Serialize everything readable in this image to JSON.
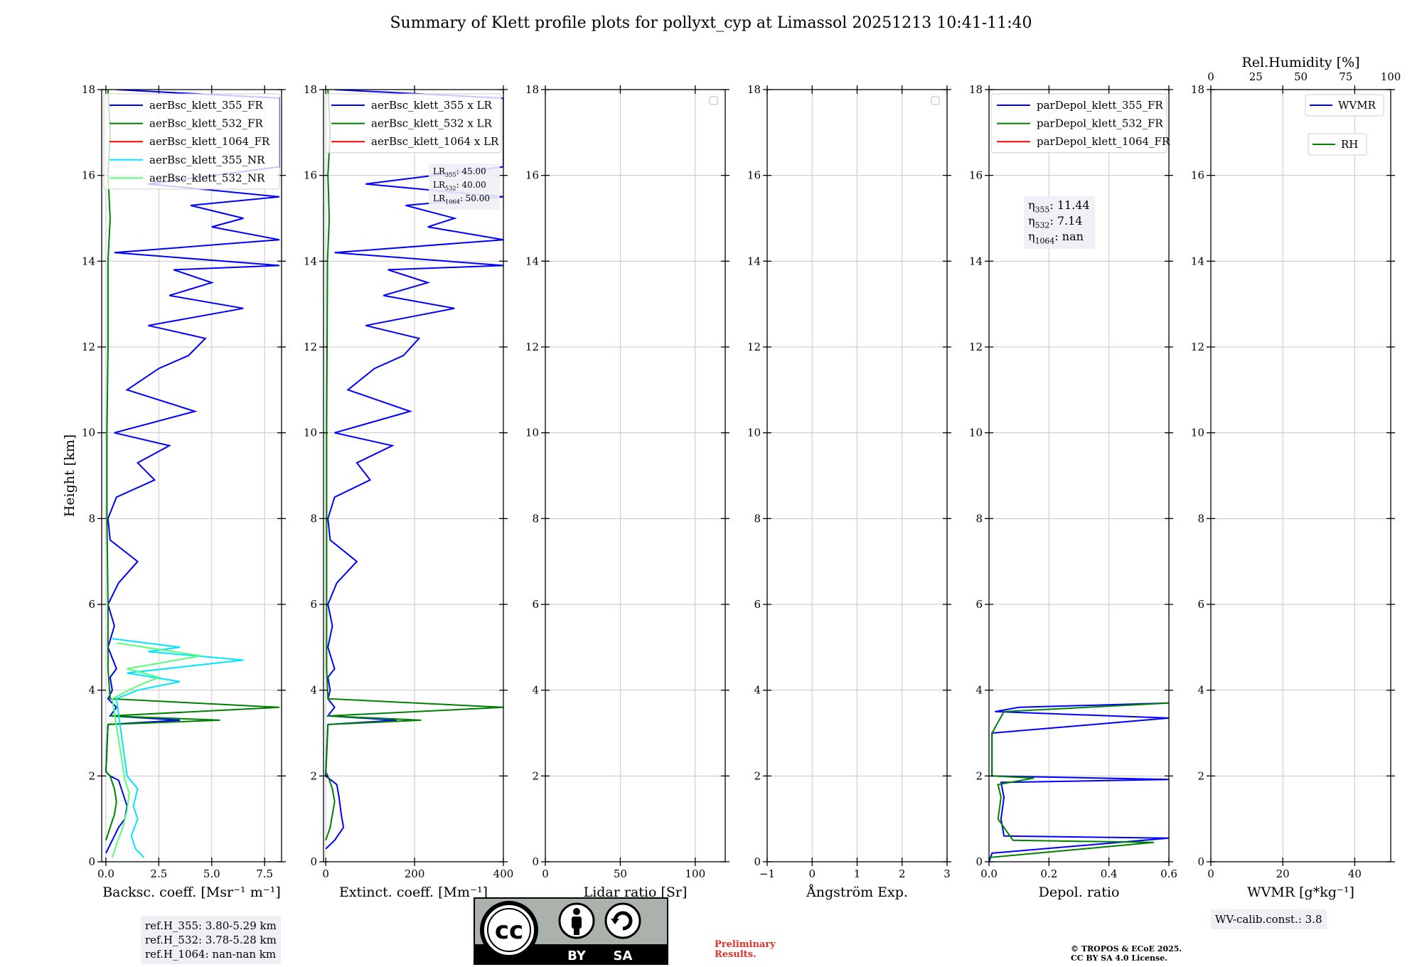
{
  "figure": {
    "title": "Summary of Klett profile plots for pollyxt_cyp at Limassol 20251213 10:41-11:40",
    "y_label": "Height [km]"
  },
  "colors": {
    "blue": "#0000ff",
    "green": "#008000",
    "red": "#ff0000",
    "cyan": "#00e5ff",
    "lightgreen": "#55ff77",
    "grid": "#c8c8c8",
    "box": "#eef0f6"
  },
  "chart_data": [
    {
      "id": "bsc",
      "type": "line",
      "xlabel": "Backsc. coeff. [Msr⁻¹ m⁻¹]",
      "ylabel": "Height [km]",
      "xlim": [
        -0.2,
        8.3
      ],
      "ylim": [
        0,
        18
      ],
      "xticks": [
        0,
        2.5,
        5,
        7.5
      ],
      "xtick_labels": [
        "0.0",
        "2.5",
        "5.0",
        "7.5"
      ],
      "yticks": [
        0,
        2,
        4,
        6,
        8,
        10,
        12,
        14,
        16,
        18
      ],
      "grid": true,
      "legend": [
        {
          "label": "aerBsc_klett_355_FR",
          "color": "#0000ff"
        },
        {
          "label": "aerBsc_klett_532_FR",
          "color": "#008000"
        },
        {
          "label": "aerBsc_klett_1064_FR",
          "color": "#ff0000"
        },
        {
          "label": "aerBsc_klett_355_NR",
          "color": "#00e5ff"
        },
        {
          "label": "aerBsc_klett_532_NR",
          "color": "#55ff77"
        }
      ],
      "legend_position": "top",
      "series": [
        {
          "name": "aerBsc_klett_355_FR",
          "color": "#0000ff",
          "points": [
            [
              0,
              0.2
            ],
            [
              0.3,
              0.5
            ],
            [
              0.6,
              0.8
            ],
            [
              0.9,
              1.0
            ],
            [
              1.0,
              1.3
            ],
            [
              0.8,
              1.6
            ],
            [
              0.6,
              1.9
            ],
            [
              0.2,
              2.0
            ],
            [
              0.0,
              2.1
            ],
            [
              0.1,
              3.2
            ],
            [
              3.5,
              3.3
            ],
            [
              0.2,
              3.4
            ],
            [
              0.5,
              3.6
            ],
            [
              0.1,
              3.8
            ],
            [
              0.3,
              4.0
            ],
            [
              0.2,
              4.3
            ],
            [
              0.5,
              4.5
            ],
            [
              0.1,
              5.0
            ],
            [
              0.4,
              5.5
            ],
            [
              0.1,
              6.0
            ],
            [
              0.6,
              6.5
            ],
            [
              1.5,
              7.0
            ],
            [
              0.2,
              7.5
            ],
            [
              0.1,
              8.0
            ],
            [
              0.5,
              8.5
            ],
            [
              2.3,
              8.9
            ],
            [
              1.5,
              9.3
            ],
            [
              3.0,
              9.7
            ],
            [
              0.4,
              10.0
            ],
            [
              4.2,
              10.5
            ],
            [
              1.0,
              11.0
            ],
            [
              2.5,
              11.5
            ],
            [
              3.9,
              11.8
            ],
            [
              4.7,
              12.2
            ],
            [
              2.0,
              12.5
            ],
            [
              6.5,
              12.9
            ],
            [
              3.0,
              13.2
            ],
            [
              5.0,
              13.5
            ],
            [
              3.2,
              13.8
            ],
            [
              8.2,
              13.9
            ],
            [
              0.4,
              14.2
            ],
            [
              8.2,
              14.5
            ],
            [
              5.0,
              14.8
            ],
            [
              6.5,
              15.0
            ],
            [
              4.0,
              15.3
            ],
            [
              8.2,
              15.5
            ],
            [
              2.0,
              15.8
            ],
            [
              8.2,
              16.2
            ],
            [
              8.2,
              16.8
            ],
            [
              8.2,
              17.3
            ],
            [
              8.2,
              17.8
            ],
            [
              0.5,
              18.0
            ]
          ]
        },
        {
          "name": "aerBsc_klett_532_FR",
          "color": "#008000",
          "points": [
            [
              0,
              0.5
            ],
            [
              0.2,
              0.8
            ],
            [
              0.4,
              1.1
            ],
            [
              0.5,
              1.4
            ],
            [
              0.4,
              1.7
            ],
            [
              0.2,
              2.0
            ],
            [
              0.0,
              2.1
            ],
            [
              0.1,
              3.2
            ],
            [
              5.4,
              3.3
            ],
            [
              0.2,
              3.4
            ],
            [
              8.2,
              3.6
            ],
            [
              0.2,
              3.8
            ],
            [
              0.1,
              4.5
            ],
            [
              0.1,
              6.0
            ],
            [
              0.05,
              8.0
            ],
            [
              0.05,
              10.0
            ],
            [
              0.1,
              12.0
            ],
            [
              0.1,
              14.0
            ],
            [
              0.2,
              15.0
            ],
            [
              0.1,
              16.0
            ],
            [
              0.2,
              17.0
            ],
            [
              0.1,
              18.0
            ]
          ]
        },
        {
          "name": "aerBsc_klett_355_NR",
          "color": "#00e5ff",
          "points": [
            [
              1.8,
              0.1
            ],
            [
              1.4,
              0.3
            ],
            [
              1.2,
              0.6
            ],
            [
              1.5,
              1.0
            ],
            [
              1.3,
              1.3
            ],
            [
              1.5,
              1.7
            ],
            [
              1.0,
              2.0
            ],
            [
              0.5,
              3.8
            ],
            [
              1.5,
              4.0
            ],
            [
              3.5,
              4.2
            ],
            [
              1.0,
              4.4
            ],
            [
              6.5,
              4.7
            ],
            [
              2.0,
              4.9
            ],
            [
              3.5,
              5.0
            ],
            [
              0.3,
              5.2
            ]
          ]
        },
        {
          "name": "aerBsc_klett_532_NR",
          "color": "#55ff77",
          "points": [
            [
              0.3,
              0.1
            ],
            [
              0.5,
              0.4
            ],
            [
              0.8,
              0.8
            ],
            [
              1.0,
              1.2
            ],
            [
              1.1,
              1.6
            ],
            [
              0.9,
              1.9
            ],
            [
              0.3,
              3.8
            ],
            [
              1.5,
              4.1
            ],
            [
              2.5,
              4.3
            ],
            [
              1.0,
              4.5
            ],
            [
              4.5,
              4.8
            ],
            [
              0.5,
              5.1
            ]
          ]
        }
      ]
    },
    {
      "id": "ext",
      "type": "line",
      "xlabel": "Extinct. coeff. [Mm⁻¹]",
      "xlim": [
        -5,
        400
      ],
      "ylim": [
        0,
        18
      ],
      "xticks": [
        0,
        200,
        400
      ],
      "xtick_labels": [
        "0",
        "200",
        "400"
      ],
      "yticks": [
        0,
        2,
        4,
        6,
        8,
        10,
        12,
        14,
        16,
        18
      ],
      "grid": true,
      "legend": [
        {
          "label": "aerBsc_klett_355 x LR",
          "color": "#0000ff"
        },
        {
          "label": "aerBsc_klett_532 x LR",
          "color": "#008000"
        },
        {
          "label": "aerBsc_klett_1064 x LR",
          "color": "#ff0000"
        }
      ],
      "legend_position": "top",
      "annotation_lines": [
        "LR355: 45.00",
        "LR532: 40.00",
        "LR1064: 50.00"
      ],
      "series": [
        {
          "name": "aerBsc_klett_355 x LR",
          "color": "#0000ff",
          "points": [
            [
              0,
              0.3
            ],
            [
              20,
              0.5
            ],
            [
              40,
              0.8
            ],
            [
              35,
              1.1
            ],
            [
              30,
              1.5
            ],
            [
              25,
              1.8
            ],
            [
              0,
              2.0
            ],
            [
              5,
              3.2
            ],
            [
              160,
              3.3
            ],
            [
              5,
              3.4
            ],
            [
              20,
              3.6
            ],
            [
              5,
              3.8
            ],
            [
              10,
              4.0
            ],
            [
              5,
              4.3
            ],
            [
              20,
              4.5
            ],
            [
              5,
              5.0
            ],
            [
              15,
              5.5
            ],
            [
              5,
              6.0
            ],
            [
              25,
              6.5
            ],
            [
              70,
              7.0
            ],
            [
              10,
              7.5
            ],
            [
              5,
              8.0
            ],
            [
              20,
              8.5
            ],
            [
              100,
              8.9
            ],
            [
              70,
              9.3
            ],
            [
              150,
              9.7
            ],
            [
              20,
              10.0
            ],
            [
              190,
              10.5
            ],
            [
              50,
              11.0
            ],
            [
              110,
              11.5
            ],
            [
              175,
              11.8
            ],
            [
              210,
              12.2
            ],
            [
              90,
              12.5
            ],
            [
              290,
              12.9
            ],
            [
              130,
              13.2
            ],
            [
              230,
              13.5
            ],
            [
              140,
              13.8
            ],
            [
              400,
              13.9
            ],
            [
              20,
              14.2
            ],
            [
              400,
              14.5
            ],
            [
              230,
              14.8
            ],
            [
              290,
              15.0
            ],
            [
              180,
              15.3
            ],
            [
              400,
              15.5
            ],
            [
              90,
              15.8
            ],
            [
              400,
              16.2
            ],
            [
              400,
              16.8
            ],
            [
              400,
              17.3
            ],
            [
              400,
              17.8
            ],
            [
              20,
              18.0
            ]
          ]
        },
        {
          "name": "aerBsc_klett_532 x LR",
          "color": "#008000",
          "points": [
            [
              0,
              0.5
            ],
            [
              10,
              0.8
            ],
            [
              15,
              1.1
            ],
            [
              20,
              1.4
            ],
            [
              15,
              1.7
            ],
            [
              5,
              2.0
            ],
            [
              0,
              2.1
            ],
            [
              5,
              3.2
            ],
            [
              215,
              3.3
            ],
            [
              5,
              3.4
            ],
            [
              400,
              3.6
            ],
            [
              5,
              3.8
            ],
            [
              2,
              4.5
            ],
            [
              2,
              6.0
            ],
            [
              2,
              8.0
            ],
            [
              2,
              10.0
            ],
            [
              3,
              12.0
            ],
            [
              4,
              14.0
            ],
            [
              8,
              15.0
            ],
            [
              5,
              16.0
            ],
            [
              10,
              17.0
            ],
            [
              5,
              18.0
            ]
          ]
        }
      ]
    },
    {
      "id": "lr",
      "type": "line",
      "xlabel": "Lidar ratio [Sr]",
      "xlim": [
        0,
        120
      ],
      "ylim": [
        0,
        18
      ],
      "xticks": [
        0,
        50,
        100
      ],
      "xtick_labels": [
        "0",
        "50",
        "100"
      ],
      "yticks": [
        0,
        2,
        4,
        6,
        8,
        10,
        12,
        14,
        16,
        18
      ],
      "grid": true,
      "legend": [],
      "series": []
    },
    {
      "id": "ae",
      "type": "line",
      "xlabel": "Ångström Exp.",
      "xlim": [
        -1,
        3
      ],
      "ylim": [
        0,
        18
      ],
      "xticks": [
        -1,
        0,
        1,
        2,
        3
      ],
      "xtick_labels": [
        "−1",
        "0",
        "1",
        "2",
        "3"
      ],
      "yticks": [
        0,
        2,
        4,
        6,
        8,
        10,
        12,
        14,
        16,
        18
      ],
      "grid": true,
      "legend": [],
      "series": []
    },
    {
      "id": "depol",
      "type": "line",
      "xlabel": "Depol. ratio",
      "xlim": [
        0,
        0.6
      ],
      "ylim": [
        0,
        18
      ],
      "xticks": [
        0,
        0.2,
        0.4,
        0.6
      ],
      "xtick_labels": [
        "0.0",
        "0.2",
        "0.4",
        "0.6"
      ],
      "yticks": [
        0,
        2,
        4,
        6,
        8,
        10,
        12,
        14,
        16,
        18
      ],
      "grid": true,
      "legend": [
        {
          "label": "parDepol_klett_355_FR",
          "color": "#0000ff"
        },
        {
          "label": "parDepol_klett_532_FR",
          "color": "#008000"
        },
        {
          "label": "parDepol_klett_1064_FR",
          "color": "#ff0000"
        }
      ],
      "legend_position": "top",
      "annotation_lines": [
        "η355: 11.44",
        "η532: 7.14",
        "η1064: nan"
      ],
      "series": [
        {
          "name": "parDepol_klett_355_FR",
          "color": "#0000ff",
          "points": [
            [
              0,
              0
            ],
            [
              0.01,
              0.2
            ],
            [
              0.6,
              0.55
            ],
            [
              0.05,
              0.6
            ],
            [
              0.04,
              1.0
            ],
            [
              0.05,
              1.5
            ],
            [
              0.04,
              1.85
            ],
            [
              0.6,
              1.92
            ],
            [
              0.01,
              2.0
            ],
            [
              0.01,
              3.0
            ],
            [
              0.6,
              3.35
            ],
            [
              0.02,
              3.5
            ],
            [
              0.1,
              3.6
            ],
            [
              0.6,
              3.7
            ]
          ]
        },
        {
          "name": "parDepol_klett_532_FR",
          "color": "#008000",
          "points": [
            [
              0,
              0.1
            ],
            [
              0.55,
              0.45
            ],
            [
              0.08,
              0.5
            ],
            [
              0.03,
              1.0
            ],
            [
              0.04,
              1.5
            ],
            [
              0.03,
              1.8
            ],
            [
              0.15,
              1.95
            ],
            [
              0.01,
              2.0
            ],
            [
              0.01,
              3.0
            ],
            [
              0.05,
              3.5
            ],
            [
              0.6,
              3.7
            ]
          ]
        }
      ]
    },
    {
      "id": "wvmr",
      "type": "line",
      "xlabel": "WVMR [g*kg⁻¹]",
      "xlim": [
        0,
        50
      ],
      "ylim": [
        0,
        18
      ],
      "xticks": [
        0,
        20,
        40
      ],
      "xtick_labels": [
        "0",
        "20",
        "40"
      ],
      "yticks": [
        0,
        2,
        4,
        6,
        8,
        10,
        12,
        14,
        16,
        18
      ],
      "grid": true,
      "secondary_xlabel": "Rel.Humidity [%]",
      "secondary_xlim": [
        0,
        100
      ],
      "secondary_xticks": [
        0,
        25,
        50,
        75,
        100
      ],
      "secondary_xtick_labels": [
        "0",
        "25",
        "50",
        "75",
        "100"
      ],
      "legend": [
        {
          "label": "WVMR",
          "color": "#0000ff"
        },
        {
          "label": "RH",
          "color": "#008000"
        }
      ],
      "legend_position": "top-right",
      "series": []
    }
  ],
  "footer": {
    "ref_lines": [
      "ref.H_355: 3.80-5.29 km",
      "ref.H_532: 3.78-5.28 km",
      "ref.H_1064: nan-nan km"
    ],
    "wv_calib": "WV-calib.const.: 3.8",
    "preliminary": [
      "Preliminary",
      "Results."
    ],
    "copyright": [
      "© TROPOS & ECoE 2025.",
      "CC BY SA 4.0 License."
    ],
    "license": {
      "cc": "cc",
      "by": "BY",
      "sa": "SA"
    }
  }
}
